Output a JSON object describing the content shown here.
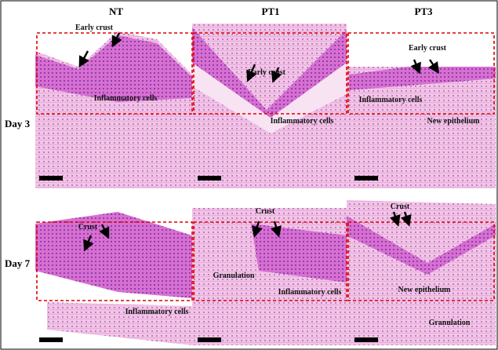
{
  "columns": [
    "NT",
    "PT1",
    "PT3"
  ],
  "rows": [
    "Day 3",
    "Day 7"
  ],
  "panels": [
    [
      {
        "annotations": [
          "Early crust",
          "Inflammatory cells"
        ]
      },
      {
        "annotations": [
          "Early crust",
          "Inflammatory cells"
        ]
      },
      {
        "annotations": [
          "Early crust",
          "Inflammatory cells",
          "New epithelium"
        ]
      }
    ],
    [
      {
        "annotations": [
          "Crust",
          "Inflammatory cells"
        ]
      },
      {
        "annotations": [
          "Crust",
          "Granulation",
          "Inflammatory cells"
        ]
      },
      {
        "annotations": [
          "Crust",
          "New epithelium",
          "Granulation"
        ]
      }
    ]
  ]
}
